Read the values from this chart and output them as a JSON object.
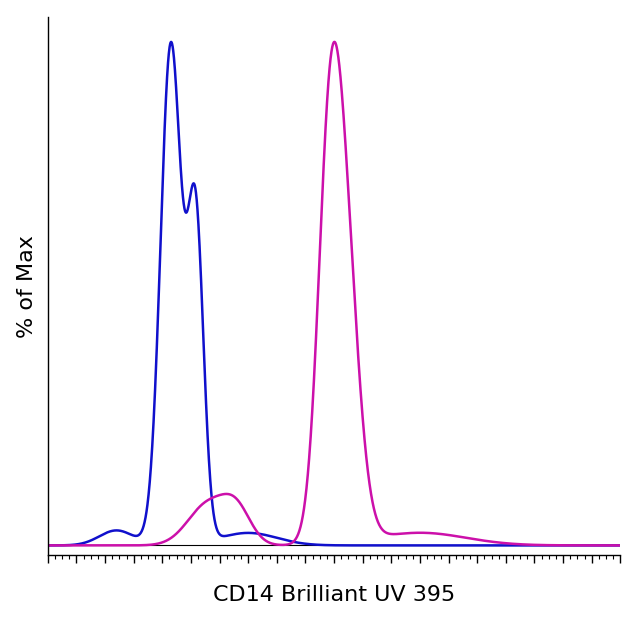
{
  "title": "",
  "xlabel": "CD14 Brilliant UV 395",
  "ylabel": "% of Max",
  "xlabel_fontsize": 16,
  "ylabel_fontsize": 16,
  "background_color": "#ffffff",
  "plot_bg_color": "#ffffff",
  "blue_color": "#1010cc",
  "magenta_color": "#cc10aa",
  "linewidth": 1.8,
  "xlim": [
    0,
    1000
  ],
  "ylim": [
    -0.02,
    1.05
  ]
}
